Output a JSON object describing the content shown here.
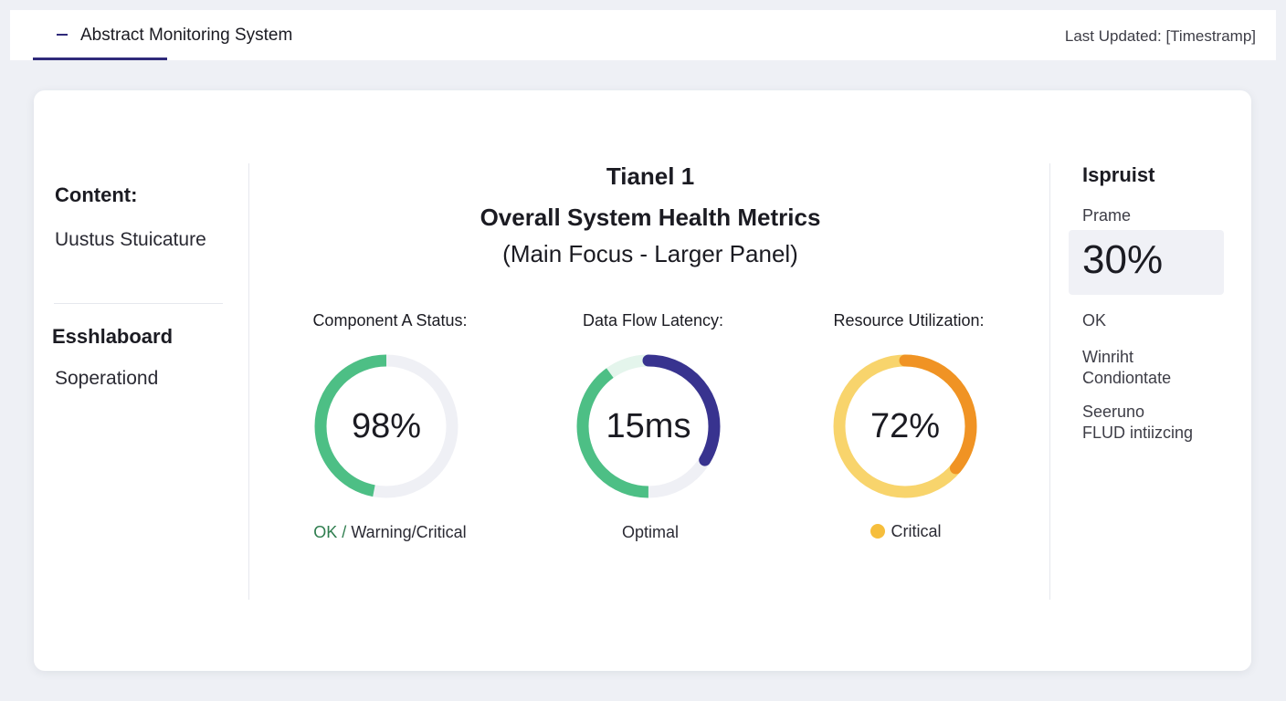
{
  "header": {
    "app_title": "Abstract Monitoring System",
    "last_updated": "Last Updated: [Timestramp]"
  },
  "sidebar": {
    "section1_heading": "Content:",
    "section1_item": "Uustus Stuicature",
    "section2_heading": "Esshlaboard",
    "section2_item": "Soperationd"
  },
  "panel": {
    "title_line1": "Tianel 1",
    "title_line2": "Overall System Health Metrics",
    "title_line3": "(Main Focus - Larger Panel)"
  },
  "metrics": [
    {
      "label": "Component A Status:",
      "value_text": "98%",
      "status_ok": "OK /",
      "status_rest": " Warning/Critical",
      "gauge_fraction": 0.47,
      "colors": {
        "progress": "#4dbf85",
        "track": "#eff0f5"
      }
    },
    {
      "label": "Data Flow Latency:",
      "value_text": "15ms",
      "status": "Optimal",
      "gauge_fraction": 0.48,
      "colors": {
        "primary": "#38338f",
        "secondary": "#4dbf85",
        "track": "#e4f5ec",
        "track2": "#eff0f5"
      }
    },
    {
      "label": "Resource Utilization:",
      "value_text": "72%",
      "status": "Critical",
      "gauge_fraction": 0.36,
      "colors": {
        "progress": "#f09324",
        "track": "#f8d46c",
        "dot": "#f6be3c"
      }
    }
  ],
  "right_panel": {
    "title": "Ispruist",
    "frame_label": "Prame",
    "frame_value": "30%",
    "ok": "OK",
    "line2a": "Winriht",
    "line2b": "Condiontate",
    "line3a": "Seeruno",
    "line3b": "FLUD intiizcing"
  },
  "colors": {
    "accent": "#2f2a7a",
    "page_bg": "#eef0f5",
    "ok_green": "#2e7d4e"
  }
}
